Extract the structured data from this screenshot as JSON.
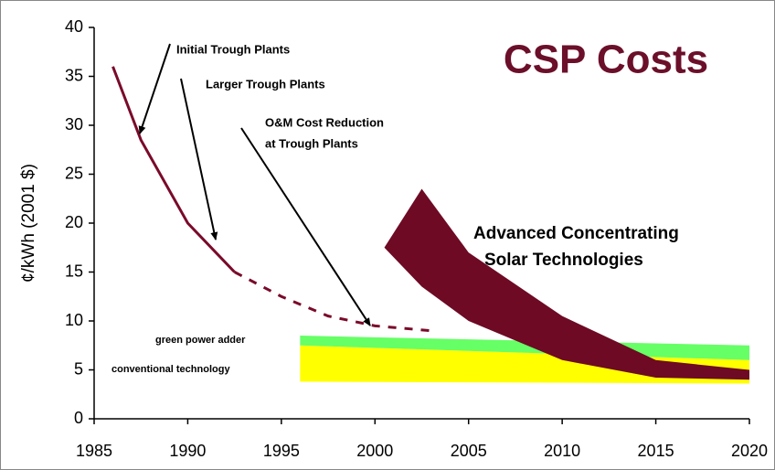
{
  "chart_data": {
    "type": "line",
    "title": "CSP Costs",
    "y_label": "¢/kWh (2001 $)",
    "xlim": [
      1985,
      2020
    ],
    "ylim": [
      0,
      40
    ],
    "xticks": [
      1985,
      1990,
      1995,
      2000,
      2005,
      2010,
      2015,
      2020
    ],
    "yticks": [
      0,
      5,
      10,
      15,
      20,
      25,
      30,
      35,
      40
    ],
    "series": [
      {
        "type": "band",
        "color": "#ffff00",
        "x": [
          1996,
          2020
        ],
        "low": [
          3.8,
          3.6
        ],
        "high": [
          7.5,
          6
        ]
      },
      {
        "type": "band",
        "color": "#66ff66",
        "x": [
          1996,
          2020
        ],
        "low": [
          7.5,
          6
        ],
        "high": [
          8.5,
          7.5
        ]
      },
      {
        "type": "band",
        "color": "#6e0a24",
        "x": [
          2000.5,
          2002.5,
          2005,
          2010,
          2015,
          2020
        ],
        "low": [
          17.5,
          13.5,
          10,
          6,
          4.2,
          4
        ],
        "high": [
          17.5,
          23.5,
          17,
          10.5,
          6,
          5
        ]
      },
      {
        "type": "line",
        "style": "solid",
        "color": "#7a0a2a",
        "x": [
          1986,
          1987.5,
          1990,
          1992.5
        ],
        "values": [
          36,
          28.5,
          20,
          15
        ]
      },
      {
        "type": "line",
        "style": "dashed",
        "color": "#7a0a2a",
        "x": [
          1992.5,
          1995,
          1997.5,
          2000,
          2003
        ],
        "values": [
          15,
          12.5,
          10.5,
          9.5,
          9
        ]
      }
    ],
    "annotations": [
      {
        "lines": [
          "Initial Trough Plants"
        ]
      },
      {
        "lines": [
          "Larger Trough Plants"
        ]
      },
      {
        "lines": [
          "O&M Cost Reduction",
          "at Trough Plants"
        ]
      },
      {
        "lines": [
          "Advanced Concentrating",
          "Solar Technologies"
        ]
      },
      {
        "lines": [
          "green power adder"
        ]
      },
      {
        "lines": [
          "conventional technology"
        ]
      }
    ]
  }
}
